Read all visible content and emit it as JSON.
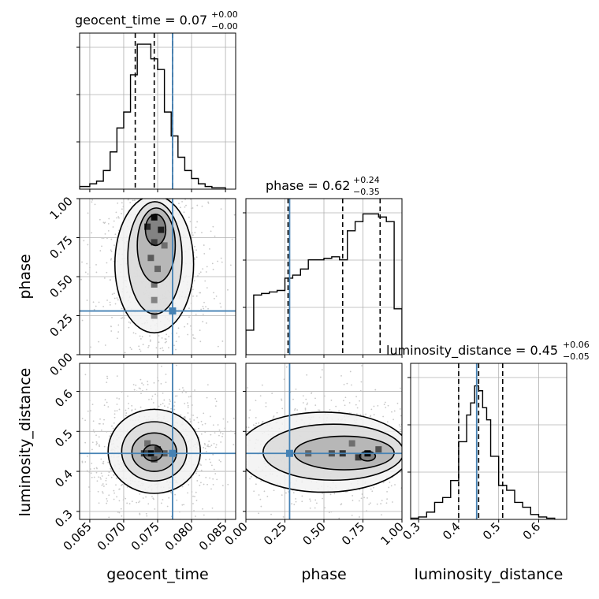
{
  "chart_data": {
    "type": "corner",
    "grid": true,
    "parameters": [
      "geocent_time",
      "phase",
      "luminosity_distance"
    ],
    "injection_color": "#4682b4",
    "titles": [
      {
        "param": "geocent_time",
        "text": "geocent_time = 0.07",
        "sup": "+0.00",
        "sub": "−0.00"
      },
      {
        "param": "phase",
        "text": "phase = 0.62",
        "sup": "+0.24",
        "sub": "−0.35"
      },
      {
        "param": "luminosity_distance",
        "text": "luminosity_distance = 0.45",
        "sup": "+0.06",
        "sub": "−0.05"
      }
    ],
    "axes": {
      "geocent_time": {
        "label": "geocent_time",
        "range": [
          0.0635,
          0.0865
        ],
        "ticks": [
          0.065,
          0.07,
          0.075,
          0.08,
          0.085
        ],
        "tick_labels": [
          "0.065",
          "0.070",
          "0.075",
          "0.080",
          "0.085"
        ]
      },
      "phase": {
        "label": "phase",
        "range": [
          0.0,
          1.0
        ],
        "ticks": [
          0.0,
          0.25,
          0.5,
          0.75,
          1.0
        ],
        "tick_labels": [
          "0.00",
          "0.25",
          "0.50",
          "0.75",
          "1.00"
        ]
      },
      "luminosity_distance": {
        "label": "luminosity_distance",
        "range": [
          0.28,
          0.67
        ],
        "ticks": [
          0.3,
          0.4,
          0.5,
          0.6
        ],
        "tick_labels": [
          "0.3",
          "0.4",
          "0.5",
          "0.6"
        ]
      }
    },
    "injection": {
      "geocent_time": 0.0772,
      "phase": 0.28,
      "luminosity_distance": 0.445
    },
    "quantiles": {
      "geocent_time": [
        0.0717,
        0.0745,
        0.0772
      ],
      "phase": [
        0.27,
        0.62,
        0.86
      ],
      "luminosity_distance": [
        0.4,
        0.45,
        0.51
      ]
    },
    "histograms": {
      "geocent_time": {
        "bin_edges": [
          0.0635,
          0.065,
          0.066,
          0.067,
          0.068,
          0.069,
          0.07,
          0.071,
          0.072,
          0.073,
          0.074,
          0.075,
          0.076,
          0.077,
          0.078,
          0.079,
          0.08,
          0.081,
          0.082,
          0.083,
          0.084,
          0.085
        ],
        "counts": [
          2,
          4,
          6,
          14,
          28,
          46,
          58,
          86,
          109,
          109,
          98,
          90,
          58,
          40,
          24,
          14,
          8,
          4,
          2,
          1,
          1
        ],
        "ymax": 115
      },
      "phase": {
        "bin_edges": [
          0.0,
          0.05,
          0.1,
          0.15,
          0.2,
          0.25,
          0.3,
          0.35,
          0.4,
          0.45,
          0.5,
          0.55,
          0.6,
          0.65,
          0.7,
          0.75,
          0.8,
          0.85,
          0.9,
          0.95,
          1.0
        ],
        "counts": [
          0.16,
          0.39,
          0.4,
          0.41,
          0.42,
          0.5,
          0.52,
          0.56,
          0.62,
          0.62,
          0.63,
          0.64,
          0.62,
          0.81,
          0.87,
          0.92,
          0.92,
          0.9,
          0.87,
          0.3
        ],
        "ymax": 1.0
      },
      "luminosity_distance": {
        "bin_edges": [
          0.28,
          0.29,
          0.3,
          0.32,
          0.34,
          0.36,
          0.38,
          0.4,
          0.42,
          0.43,
          0.44,
          0.45,
          0.46,
          0.47,
          0.48,
          0.5,
          0.52,
          0.54,
          0.56,
          0.58,
          0.6,
          0.62,
          0.64
        ],
        "counts": [
          0.5,
          0.5,
          1,
          3,
          7,
          9,
          16,
          32,
          43,
          48,
          55,
          53,
          46,
          41,
          26,
          14,
          12,
          7,
          5,
          2,
          1,
          0.5
        ],
        "ymax": 63
      }
    },
    "pairs": [
      {
        "x": "geocent_time",
        "y": "phase",
        "hot_cells": [
          [
            0.0745,
            0.88,
            0.95
          ],
          [
            0.0735,
            0.82,
            0.8
          ],
          [
            0.0755,
            0.8,
            0.85
          ],
          [
            0.0745,
            0.72,
            0.7
          ],
          [
            0.074,
            0.62,
            0.55
          ],
          [
            0.075,
            0.55,
            0.5
          ],
          [
            0.0745,
            0.45,
            0.45
          ],
          [
            0.0745,
            0.35,
            0.35
          ],
          [
            0.0745,
            0.25,
            0.3
          ],
          [
            0.076,
            0.7,
            0.45
          ]
        ],
        "levels": [
          {
            "cx": 0.0745,
            "cy": 0.58,
            "rx": 0.0058,
            "ry": 0.44
          },
          {
            "cx": 0.0746,
            "cy": 0.62,
            "rx": 0.004,
            "ry": 0.36
          },
          {
            "cx": 0.0748,
            "cy": 0.7,
            "rx": 0.0028,
            "ry": 0.24
          },
          {
            "cx": 0.0747,
            "cy": 0.8,
            "rx": 0.0015,
            "ry": 0.1
          }
        ]
      },
      {
        "x": "geocent_time",
        "y": "luminosity_distance",
        "hot_cells": [
          [
            0.074,
            0.445,
            0.95
          ],
          [
            0.075,
            0.455,
            0.75
          ],
          [
            0.073,
            0.445,
            0.7
          ],
          [
            0.0745,
            0.43,
            0.6
          ],
          [
            0.076,
            0.445,
            0.55
          ],
          [
            0.0735,
            0.47,
            0.45
          ]
        ],
        "levels": [
          {
            "cx": 0.0745,
            "cy": 0.45,
            "rx": 0.0068,
            "ry": 0.105
          },
          {
            "cx": 0.0745,
            "cy": 0.45,
            "rx": 0.0048,
            "ry": 0.074
          },
          {
            "cx": 0.0745,
            "cy": 0.448,
            "rx": 0.0033,
            "ry": 0.048
          },
          {
            "cx": 0.0743,
            "cy": 0.446,
            "rx": 0.0014,
            "ry": 0.02
          }
        ]
      },
      {
        "x": "phase",
        "y": "luminosity_distance",
        "hot_cells": [
          [
            0.78,
            0.445,
            0.95
          ],
          [
            0.62,
            0.445,
            0.75
          ],
          [
            0.72,
            0.435,
            0.7
          ],
          [
            0.55,
            0.445,
            0.6
          ],
          [
            0.4,
            0.445,
            0.5
          ],
          [
            0.85,
            0.455,
            0.6
          ],
          [
            0.68,
            0.47,
            0.45
          ]
        ],
        "levels": [
          {
            "cx": 0.5,
            "cy": 0.448,
            "rx": 0.55,
            "ry": 0.1
          },
          {
            "cx": 0.56,
            "cy": 0.448,
            "rx": 0.45,
            "ry": 0.07
          },
          {
            "cx": 0.63,
            "cy": 0.446,
            "rx": 0.32,
            "ry": 0.042
          },
          {
            "cx": 0.78,
            "cy": 0.438,
            "rx": 0.05,
            "ry": 0.012
          }
        ]
      }
    ]
  }
}
